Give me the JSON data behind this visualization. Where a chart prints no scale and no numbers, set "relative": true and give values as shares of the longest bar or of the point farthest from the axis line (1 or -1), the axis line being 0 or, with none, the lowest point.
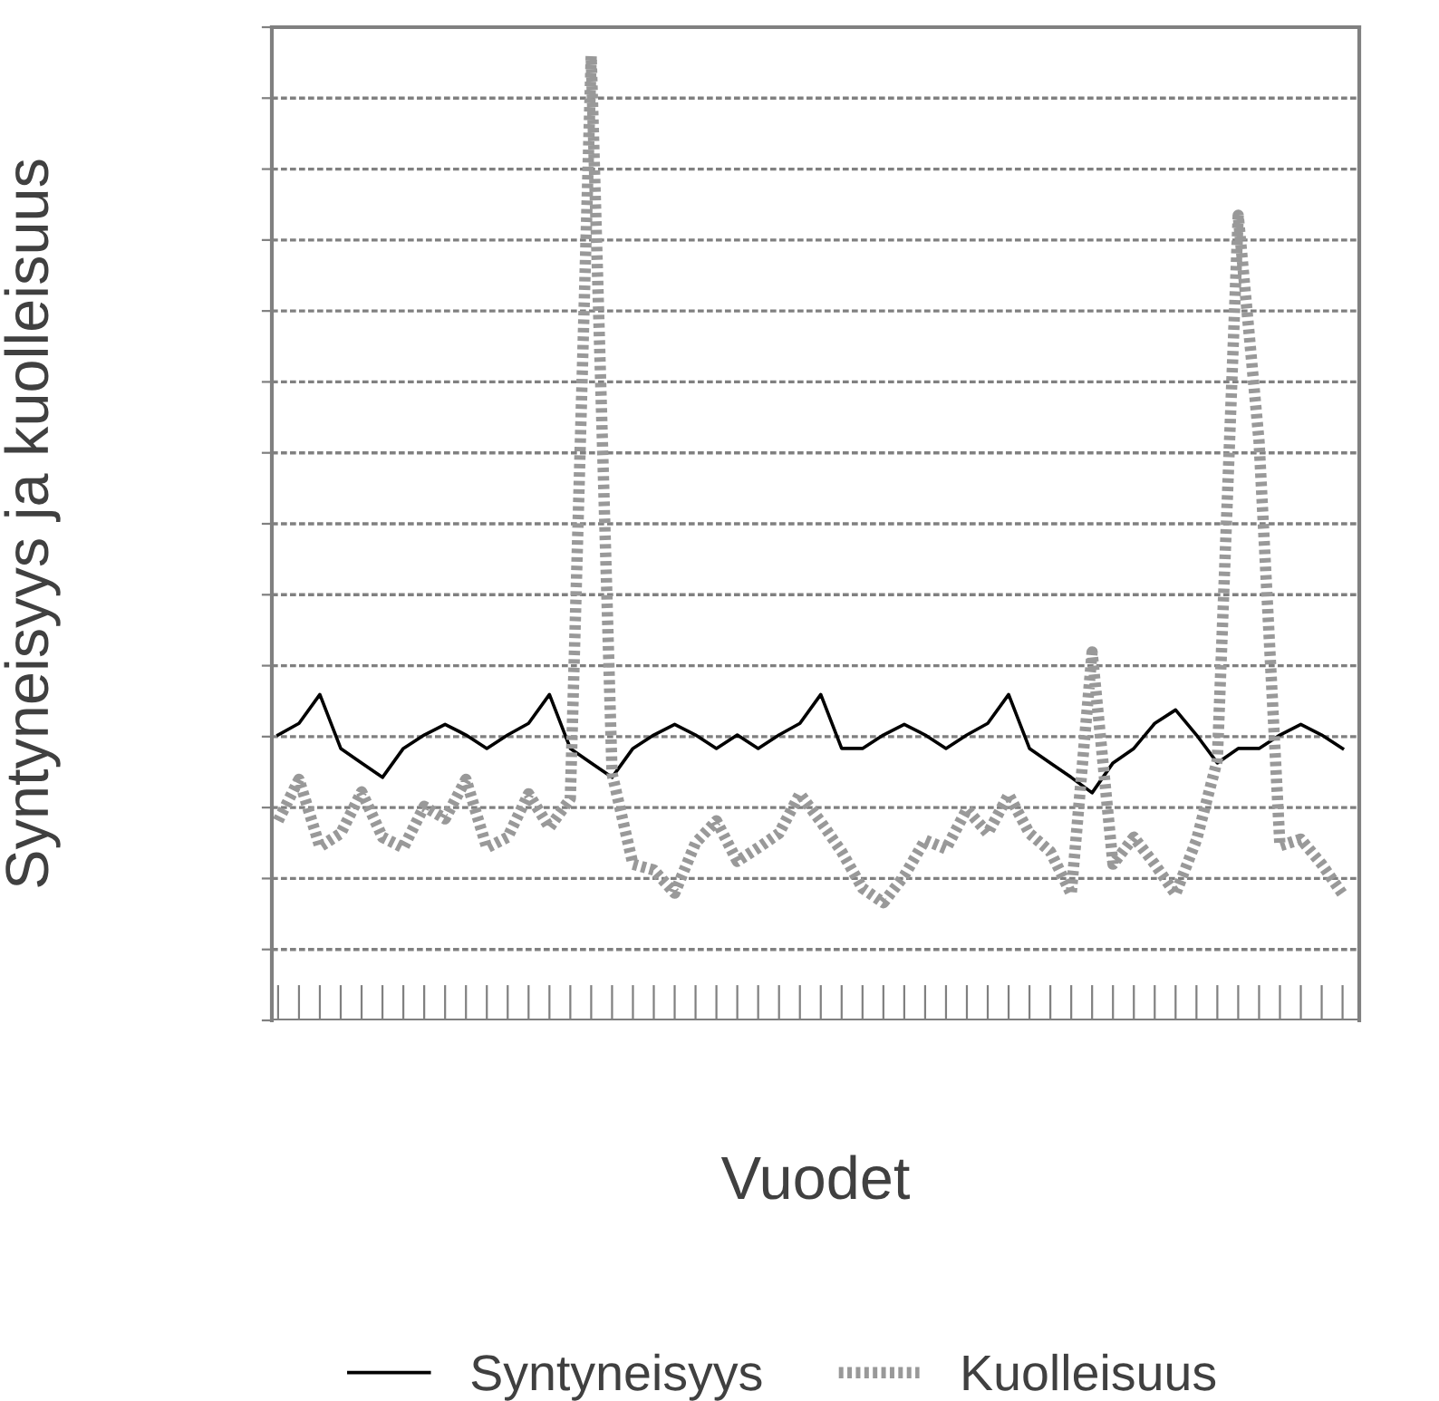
{
  "chart_data": {
    "type": "line",
    "relative": true,
    "xlabel": "Vuodet",
    "ylabel": "Syntyneisyys ja kuolleisuus",
    "categories": [
      null,
      null,
      null,
      null,
      null,
      null,
      null,
      null,
      null,
      null,
      null,
      null,
      null,
      null,
      null,
      null,
      null,
      null,
      null,
      null,
      null,
      null,
      null,
      null,
      null,
      null,
      null,
      null,
      null,
      null,
      null,
      null,
      null,
      null,
      null,
      null,
      null,
      null,
      null,
      null,
      null,
      null,
      null,
      null,
      null,
      null,
      null,
      null,
      null,
      null,
      null,
      null
    ],
    "series": [
      {
        "name": "Syntyneisyys",
        "color": "#000000",
        "line_style": "solid",
        "values": [
          0.296,
          0.308,
          0.338,
          0.282,
          0.267,
          0.252,
          0.282,
          0.296,
          0.307,
          0.296,
          0.282,
          0.296,
          0.308,
          0.338,
          0.282,
          0.267,
          0.252,
          0.282,
          0.296,
          0.307,
          0.296,
          0.282,
          0.296,
          0.282,
          0.296,
          0.308,
          0.338,
          0.282,
          0.282,
          0.296,
          0.307,
          0.296,
          0.282,
          0.296,
          0.308,
          0.338,
          0.282,
          0.267,
          0.252,
          0.236,
          0.267,
          0.282,
          0.308,
          0.322,
          0.296,
          0.267,
          0.282,
          0.282,
          0.296,
          0.307,
          0.296,
          0.282
        ]
      },
      {
        "name": "Kuolleisuus",
        "color": "#999999",
        "line_style": "dotted",
        "values": [
          0.207,
          0.25,
          0.18,
          0.194,
          0.237,
          0.19,
          0.179,
          0.222,
          0.209,
          0.25,
          0.179,
          0.19,
          0.235,
          0.2,
          0.23,
          1.0,
          0.256,
          0.162,
          0.156,
          0.132,
          0.184,
          0.207,
          0.165,
          0.179,
          0.194,
          0.235,
          0.206,
          0.175,
          0.137,
          0.122,
          0.15,
          0.187,
          0.178,
          0.219,
          0.194,
          0.234,
          0.194,
          0.175,
          0.131,
          0.382,
          0.162,
          0.19,
          0.162,
          0.131,
          0.187,
          0.27,
          0.835,
          0.6,
          0.181,
          0.188,
          0.162,
          0.131
        ]
      }
    ],
    "grid": "y",
    "legend": "bottom"
  }
}
